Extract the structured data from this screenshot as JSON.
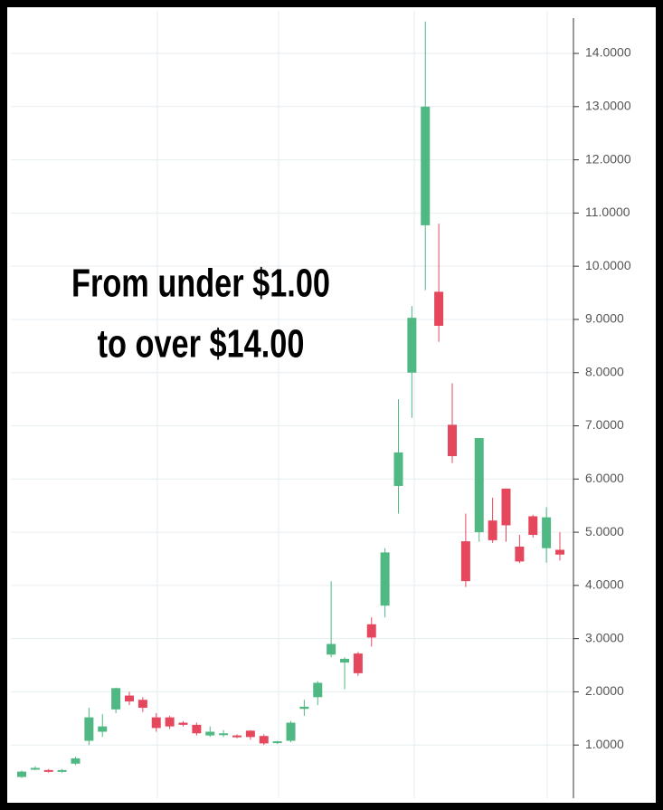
{
  "chart_data": {
    "type": "candlestick",
    "annotation": [
      "From under $1.00",
      "to over $14.00"
    ],
    "series": [
      {
        "open": [
          0.4,
          0.55,
          0.53,
          0.5,
          0.65,
          1.08,
          1.25,
          1.67,
          1.93,
          1.85,
          1.52,
          1.52,
          1.42,
          1.38,
          1.18,
          1.2,
          1.18,
          1.27,
          1.17,
          1.05,
          1.08,
          1.68,
          1.9,
          2.7,
          2.55,
          2.72,
          3.27,
          3.62,
          5.87,
          8.0,
          10.77,
          9.52,
          7.02,
          4.83,
          5.0,
          5.22,
          5.82,
          4.73,
          5.3,
          4.7,
          4.67
        ],
        "high": [
          0.52,
          0.6,
          0.55,
          0.55,
          0.78,
          1.7,
          1.58,
          2.08,
          2.0,
          1.9,
          1.6,
          1.55,
          1.45,
          1.42,
          1.35,
          1.28,
          1.2,
          1.28,
          1.2,
          1.08,
          1.45,
          1.85,
          2.2,
          4.08,
          2.65,
          2.75,
          3.4,
          4.7,
          7.5,
          9.25,
          14.6,
          10.8,
          7.8,
          5.35,
          6.77,
          5.65,
          5.82,
          4.95,
          5.33,
          5.47,
          5.0
        ],
        "low": [
          0.38,
          0.53,
          0.48,
          0.48,
          0.62,
          1.0,
          1.15,
          1.6,
          1.75,
          1.62,
          1.25,
          1.3,
          1.35,
          1.18,
          1.15,
          1.15,
          1.13,
          1.1,
          1.0,
          1.02,
          1.05,
          1.55,
          1.75,
          2.65,
          2.05,
          2.3,
          2.85,
          3.4,
          5.35,
          7.15,
          9.55,
          8.58,
          6.3,
          3.97,
          4.82,
          4.8,
          4.82,
          4.42,
          4.9,
          4.43,
          4.47
        ],
        "close": [
          0.5,
          0.57,
          0.5,
          0.53,
          0.75,
          1.52,
          1.35,
          2.07,
          1.82,
          1.7,
          1.32,
          1.35,
          1.38,
          1.22,
          1.25,
          1.22,
          1.15,
          1.15,
          1.03,
          1.07,
          1.42,
          1.72,
          2.17,
          2.9,
          2.62,
          2.35,
          3.02,
          4.62,
          6.5,
          9.03,
          13.0,
          8.88,
          6.43,
          4.08,
          6.77,
          4.85,
          5.13,
          4.45,
          4.95,
          5.28,
          4.58
        ]
      }
    ],
    "up_color": "#4fb883",
    "down_color": "#e5485d",
    "ylim": [
      0,
      14.8
    ],
    "yticks": [
      {
        "value": 1,
        "label": "1.0000"
      },
      {
        "value": 2,
        "label": "2.0000"
      },
      {
        "value": 3,
        "label": "3.0000"
      },
      {
        "value": 4,
        "label": "4.0000"
      },
      {
        "value": 5,
        "label": "5.0000"
      },
      {
        "value": 6,
        "label": "6.0000"
      },
      {
        "value": 7,
        "label": "7.0000"
      },
      {
        "value": 8,
        "label": "8.0000"
      },
      {
        "value": 9,
        "label": "9.0000"
      },
      {
        "value": 10,
        "label": "10.0000"
      },
      {
        "value": 11,
        "label": "11.0000"
      },
      {
        "value": 12,
        "label": "12.0000"
      },
      {
        "value": 13,
        "label": "13.0000"
      },
      {
        "value": 14,
        "label": "14.0000"
      }
    ],
    "grid": true
  }
}
